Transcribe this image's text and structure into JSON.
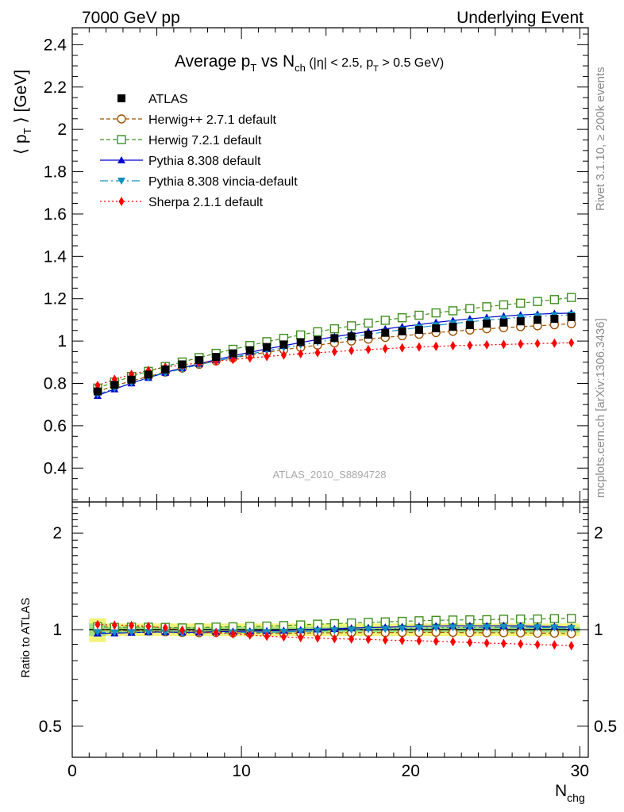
{
  "header": {
    "left": "7000 GeV pp",
    "right": "Underlying Event"
  },
  "side_labels": {
    "rivet": "Rivet 3.1.10, ≥ 200k events",
    "mcplots": "mcplots.cern.ch [arXiv:1306.3436]"
  },
  "watermark": "ATLAS_2010_S8894728",
  "chart_data": {
    "type": "line",
    "title": "Average p_T vs N_ch (|η| < 2.5, p_T > 0.5 GeV)",
    "title_parts": {
      "main": "Average p",
      "sub1": "T",
      "mid": " vs N",
      "sub2": "ch",
      "small": " (|η| < 2.5, p",
      "sub3": "T",
      "small_end": " > 0.5 GeV)"
    },
    "ylabel": "⟨ pT ⟩ [GeV]",
    "ylabel_parts": {
      "open": "⟨ p",
      "sub": "T",
      "close": " ⟩ [GeV]"
    },
    "xlabel": "Nchg",
    "xlabel_parts": {
      "main": "N",
      "sub": "chg"
    },
    "ratio_ylabel": "Ratio to ATLAS",
    "xlim": [
      0,
      30.5
    ],
    "ylim": [
      0.24,
      2.48
    ],
    "ratio_ylim": [
      0.4,
      2.5
    ],
    "ratio_scale": "log",
    "x_ticks": [
      "0",
      "10",
      "20",
      "30"
    ],
    "y_ticks": [
      "0.4",
      "0.6",
      "0.8",
      "1",
      "1.2",
      "1.4",
      "1.6",
      "1.8",
      "2",
      "2.2",
      "2.4"
    ],
    "ratio_ticks": [
      "0.5",
      "1",
      "2"
    ],
    "legend_position": "top-left",
    "x": [
      1.5,
      2.5,
      3.5,
      4.5,
      5.5,
      6.5,
      7.5,
      8.5,
      9.5,
      10.5,
      11.5,
      12.5,
      13.5,
      14.5,
      15.5,
      16.5,
      17.5,
      18.5,
      19.5,
      20.5,
      21.5,
      22.5,
      23.5,
      24.5,
      25.5,
      26.5,
      27.5,
      28.5,
      29.5
    ],
    "data": {
      "name": "ATLAS",
      "values": [
        0.762,
        0.793,
        0.818,
        0.842,
        0.866,
        0.89,
        0.91,
        0.925,
        0.942,
        0.957,
        0.972,
        0.984,
        0.995,
        1.004,
        1.014,
        1.022,
        1.03,
        1.039,
        1.046,
        1.053,
        1.06,
        1.067,
        1.075,
        1.082,
        1.087,
        1.093,
        1.1,
        1.105,
        1.113
      ],
      "band_half_width": [
        0.06,
        0.03,
        0.02,
        0.02,
        0.02,
        0.02,
        0.02,
        0.02,
        0.02,
        0.02,
        0.02,
        0.02,
        0.02,
        0.02,
        0.02,
        0.02,
        0.02,
        0.02,
        0.02,
        0.02,
        0.02,
        0.02,
        0.02,
        0.02,
        0.02,
        0.02,
        0.02,
        0.02,
        0.02
      ],
      "color": "#000000"
    },
    "series": [
      {
        "name": "Herwig++ 2.7.1 default",
        "color": "#a05000",
        "marker": "open-circle",
        "dash": "5,3",
        "values": [
          0.762,
          0.788,
          0.812,
          0.833,
          0.853,
          0.872,
          0.89,
          0.906,
          0.92,
          0.934,
          0.947,
          0.959,
          0.97,
          0.981,
          0.991,
          1.0,
          1.009,
          1.017,
          1.025,
          1.032,
          1.04,
          1.046,
          1.052,
          1.058,
          1.063,
          1.068,
          1.072,
          1.077,
          1.082
        ]
      },
      {
        "name": "Herwig 7.2.1 default",
        "color": "#409020",
        "marker": "open-square",
        "dash": "5,3",
        "values": [
          0.778,
          0.806,
          0.833,
          0.857,
          0.88,
          0.901,
          0.922,
          0.942,
          0.961,
          0.979,
          0.997,
          1.013,
          1.029,
          1.044,
          1.058,
          1.072,
          1.085,
          1.098,
          1.11,
          1.122,
          1.133,
          1.143,
          1.153,
          1.162,
          1.171,
          1.179,
          1.187,
          1.196,
          1.206
        ]
      },
      {
        "name": "Pythia 8.308 default",
        "color": "#0000d0",
        "marker": "triangle-up",
        "dash": "",
        "values": [
          0.742,
          0.773,
          0.801,
          0.827,
          0.851,
          0.873,
          0.893,
          0.912,
          0.93,
          0.947,
          0.963,
          0.978,
          0.993,
          1.007,
          1.02,
          1.033,
          1.045,
          1.057,
          1.068,
          1.078,
          1.088,
          1.097,
          1.105,
          1.112,
          1.118,
          1.123,
          1.127,
          1.13,
          1.132
        ]
      },
      {
        "name": "Pythia 8.308 vincia-default",
        "color": "#1090c0",
        "marker": "triangle-down",
        "dash": "10,4,2,4",
        "values": [
          0.748,
          0.777,
          0.803,
          0.827,
          0.849,
          0.869,
          0.888,
          0.906,
          0.923,
          0.939,
          0.954,
          0.968,
          0.982,
          0.995,
          1.008,
          1.02,
          1.032,
          1.043,
          1.054,
          1.064,
          1.074,
          1.083,
          1.091,
          1.099,
          1.106,
          1.112,
          1.117,
          1.121,
          1.124
        ]
      },
      {
        "name": "Sherpa 2.1.1 default",
        "color": "#ff0000",
        "marker": "diamond",
        "dash": "2,3",
        "values": [
          0.79,
          0.819,
          0.843,
          0.862,
          0.877,
          0.887,
          0.897,
          0.905,
          0.913,
          0.92,
          0.927,
          0.934,
          0.94,
          0.945,
          0.95,
          0.955,
          0.96,
          0.964,
          0.968,
          0.972,
          0.975,
          0.978,
          0.98,
          0.982,
          0.984,
          0.986,
          0.988,
          0.99,
          0.992
        ]
      }
    ]
  }
}
